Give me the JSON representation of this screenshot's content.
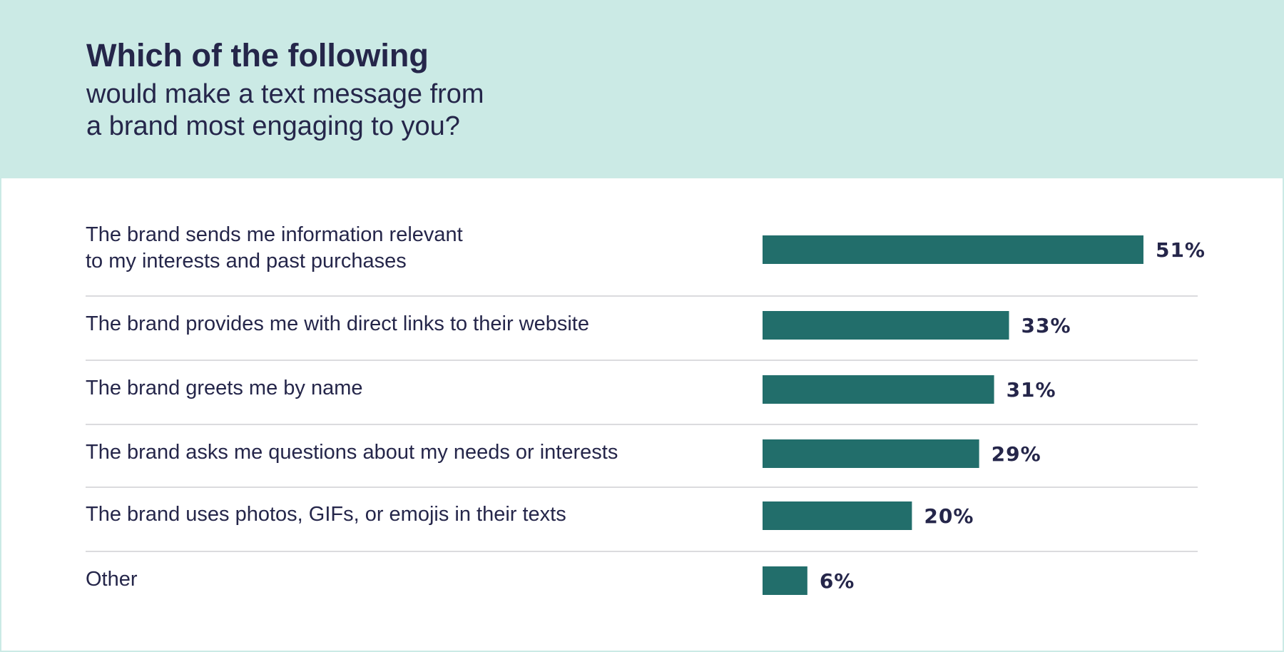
{
  "header": {
    "title": "Which of the following",
    "subtitle_line1": "would make a text message from",
    "subtitle_line2": "a brand most engaging to you?"
  },
  "colors": {
    "header_bg": "#cbeae5",
    "bar": "#226e6b",
    "text": "#25264a",
    "divider": "#cfcfd4"
  },
  "chart_data": {
    "type": "bar",
    "orientation": "horizontal",
    "title": "Which of the following would make a text message from a brand most engaging to you?",
    "categories": [
      "The brand sends me information relevant to my interests and past purchases",
      "The brand provides me with direct links to their website",
      "The brand greets me by name",
      "The brand asks me questions about my needs or interests",
      "The brand uses photos, GIFs, or emojis in their texts",
      "Other"
    ],
    "category_lines": [
      [
        "The brand sends me information relevant",
        "to my interests and past purchases"
      ],
      [
        "The brand provides me with direct links to their website"
      ],
      [
        "The brand greets me by name"
      ],
      [
        "The brand asks me questions about my needs or interests"
      ],
      [
        "The brand uses photos, GIFs, or emojis in their texts"
      ],
      [
        "Other"
      ]
    ],
    "values": [
      51,
      33,
      31,
      29,
      20,
      6
    ],
    "value_labels": [
      "51%",
      "33%",
      "31%",
      "29%",
      "20%",
      "6%"
    ],
    "unit": "%",
    "xlim": [
      0,
      100
    ],
    "grid": false,
    "legend": "none"
  }
}
